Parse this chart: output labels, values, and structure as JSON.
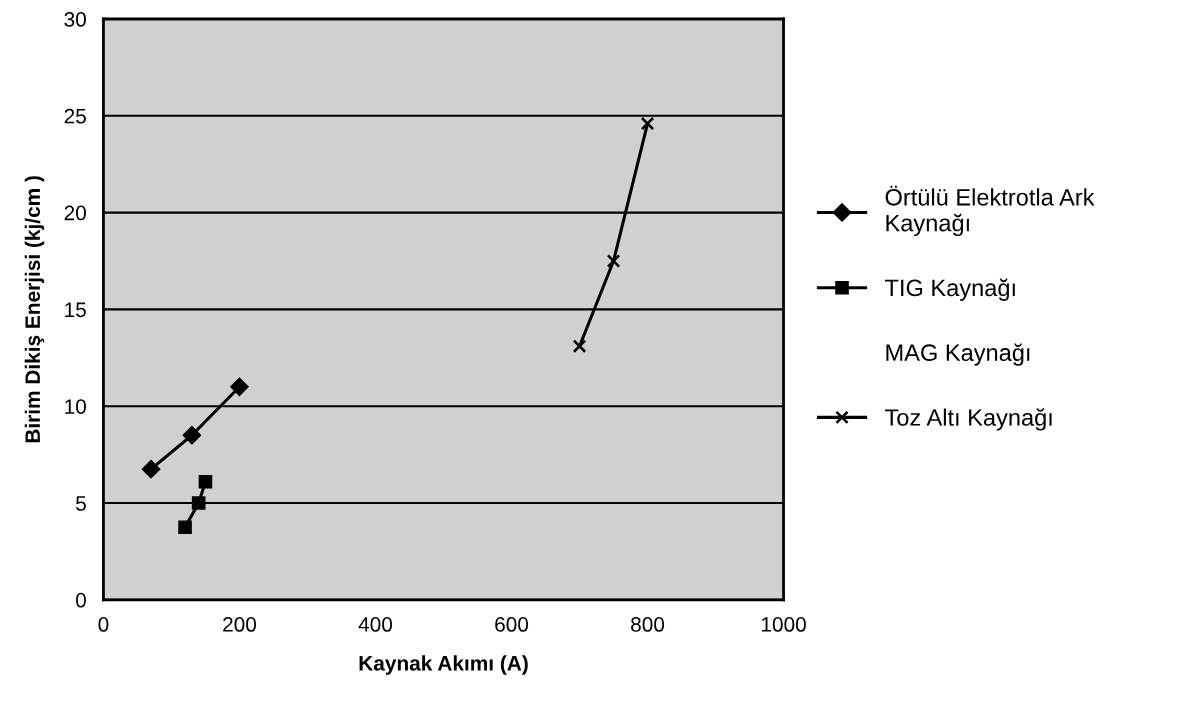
{
  "chart_data": {
    "type": "line",
    "xlabel": "Kaynak Akımı (A)",
    "ylabel": "Birim Dikiş Enerjisi (kj/cm )",
    "xlim": [
      0,
      1000
    ],
    "xticks": [
      0,
      200,
      400,
      600,
      800,
      1000
    ],
    "ylim": [
      0,
      30
    ],
    "yticks": [
      0,
      5,
      10,
      15,
      20,
      25,
      30
    ],
    "grid": "y",
    "legend": "right",
    "line_style": "solid",
    "series": [
      {
        "name": "Örtülü Elektrotla Ark\nKaynağı",
        "color": "#000000",
        "marker": "diamond",
        "x": [
          70,
          130,
          200
        ],
        "values": [
          6.75,
          8.5,
          11
        ]
      },
      {
        "name": "TIG Kaynağı",
        "color": "#000000",
        "marker": "square",
        "x": [
          120,
          140,
          150
        ],
        "values": [
          3.75,
          5,
          6.1
        ]
      },
      {
        "name": "MAG Kaynağı"
      },
      {
        "name": "Toz Altı Kaynağı",
        "color": "#000000",
        "marker": "cross",
        "x": [
          700,
          750,
          800
        ],
        "values": [
          13.1,
          17.5,
          24.6
        ]
      }
    ]
  }
}
